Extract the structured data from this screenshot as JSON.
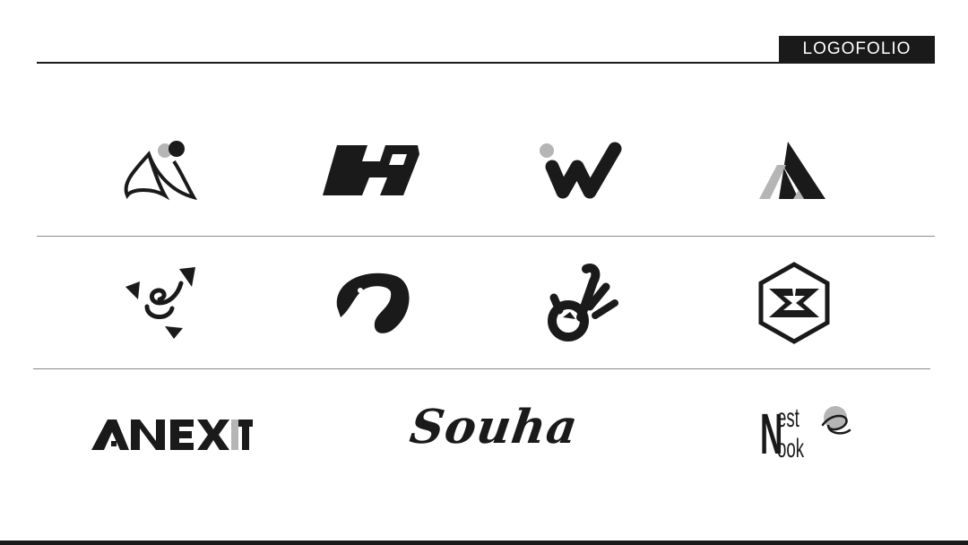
{
  "header": {
    "badge_label": "LOGOFOLIO"
  },
  "colors": {
    "ink": "#1a1a1a",
    "accent_gray": "#b5b5b5",
    "divider": "#8a8a8a",
    "background": "#ffffff"
  },
  "logos": [
    {
      "name": "a-swirl-logo"
    },
    {
      "name": "h-block-logo"
    },
    {
      "name": "w-dot-logo"
    },
    {
      "name": "a-triangle-logo"
    },
    {
      "name": "triangle-swirl-logo"
    },
    {
      "name": "eagle-logo"
    },
    {
      "name": "ok-hand-logo"
    },
    {
      "name": "hexagon-x-logo"
    }
  ],
  "wordmarks": {
    "nexit": {
      "text": "NEXIT"
    },
    "souha": {
      "text": "Souha"
    },
    "nestnook": {
      "line1_initial": "N",
      "line1_rest": "est",
      "line2_rest": "ook"
    }
  }
}
